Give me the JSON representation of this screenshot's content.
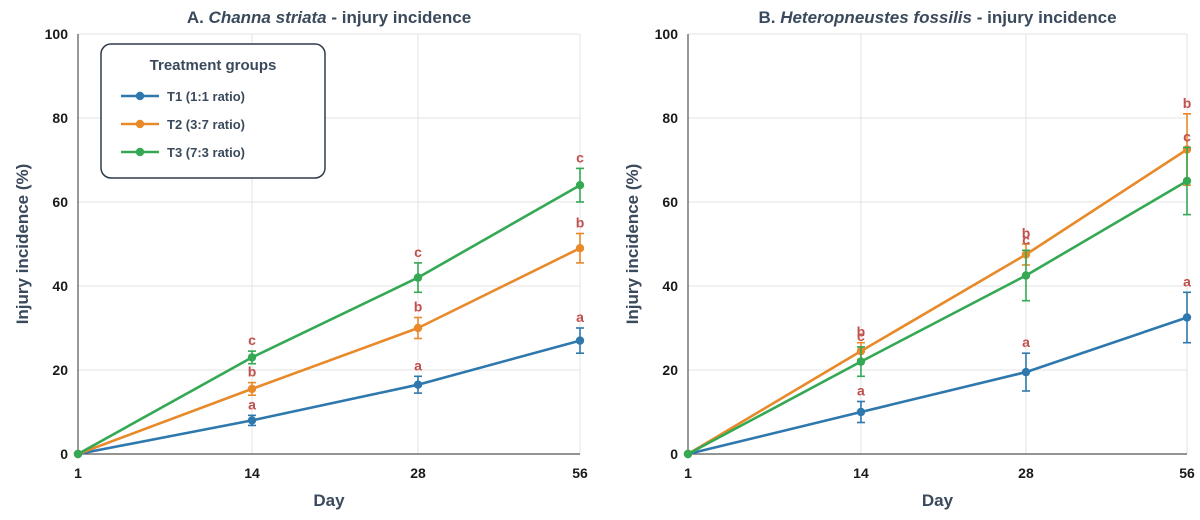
{
  "chart_data": [
    {
      "type": "line",
      "title_prefix": "A. ",
      "title_species": "Channa striata",
      "title_suffix": " - injury incidence",
      "xlabel": "Day",
      "ylabel": "Injury incidence (%)",
      "x": [
        "1",
        "14",
        "28",
        "56"
      ],
      "ylim": [
        0,
        100
      ],
      "yticks": [
        "0",
        "20",
        "40",
        "60",
        "80",
        "100"
      ],
      "grid": true,
      "legend": {
        "title": "Treatment groups",
        "placement": "top-left"
      },
      "series": [
        {
          "name": "T1 (1:1 ratio)",
          "color": "#2e78ae",
          "values": [
            0,
            8,
            16.5,
            27
          ],
          "errors": [
            0,
            1.2,
            2,
            3
          ],
          "sig": [
            "",
            "a",
            "a",
            "a"
          ]
        },
        {
          "name": "T2 (3:7 ratio)",
          "color": "#e8892a",
          "values": [
            0,
            15.5,
            30,
            49
          ],
          "errors": [
            0,
            1.5,
            2.5,
            3.5
          ],
          "sig": [
            "",
            "b",
            "b",
            "b"
          ]
        },
        {
          "name": "T3 (7:3 ratio)",
          "color": "#34a853",
          "values": [
            0,
            23,
            42,
            64
          ],
          "errors": [
            0,
            1.5,
            3.5,
            4
          ],
          "sig": [
            "",
            "c",
            "c",
            "c"
          ]
        }
      ]
    },
    {
      "type": "line",
      "title_prefix": "B. ",
      "title_species": "Heteropneustes fossilis",
      "title_suffix": " - injury incidence",
      "xlabel": "Day",
      "ylabel": "Injury incidence (%)",
      "x": [
        "1",
        "14",
        "28",
        "56"
      ],
      "ylim": [
        0,
        100
      ],
      "yticks": [
        "0",
        "20",
        "40",
        "60",
        "80",
        "100"
      ],
      "grid": true,
      "series": [
        {
          "name": "T1 (1:1 ratio)",
          "color": "#2e78ae",
          "values": [
            0,
            10,
            19.5,
            32.5
          ],
          "errors": [
            0,
            2.5,
            4.5,
            6
          ],
          "sig": [
            "",
            "a",
            "a",
            "a"
          ]
        },
        {
          "name": "T2 (3:7 ratio)",
          "color": "#e8892a",
          "values": [
            0,
            24.5,
            47.5,
            72.5
          ],
          "errors": [
            0,
            2,
            2.5,
            8.5
          ],
          "sig": [
            "",
            "b",
            "b",
            "b"
          ]
        },
        {
          "name": "T3 (7:3 ratio)",
          "color": "#34a853",
          "values": [
            0,
            22,
            42.5,
            65
          ],
          "errors": [
            0,
            3.5,
            6,
            8
          ],
          "sig": [
            "",
            "c",
            "c",
            "c"
          ]
        }
      ]
    }
  ]
}
